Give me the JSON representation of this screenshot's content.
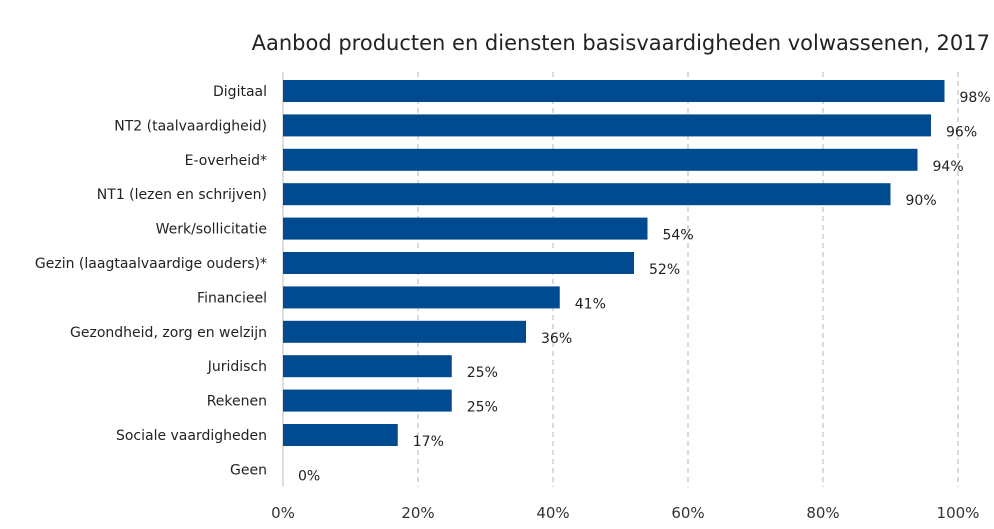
{
  "chart_data": {
    "type": "bar",
    "orientation": "horizontal",
    "title": "Aanbod producten en diensten basisvaardigheden volwassenen, 2017",
    "categories": [
      "Digitaal",
      "NT2 (taalvaardigheid)",
      "E-overheid*",
      "NT1 (lezen en schrijven)",
      "Werk/sollicitatie",
      "Gezin (laagtaalvaardige ouders)*",
      "Financieel",
      "Gezondheid, zorg en welzijn",
      "Juridisch",
      "Rekenen",
      "Sociale vaardigheden",
      "Geen"
    ],
    "values": [
      98,
      96,
      94,
      90,
      54,
      52,
      41,
      36,
      25,
      25,
      17,
      0
    ],
    "value_labels": [
      "98%",
      "96%",
      "94%",
      "90%",
      "54%",
      "52%",
      "41%",
      "36%",
      "25%",
      "25%",
      "17%",
      "0%"
    ],
    "xlim": [
      0,
      100
    ],
    "x_ticks": [
      0,
      20,
      40,
      60,
      80,
      100
    ],
    "x_tick_labels": [
      "0%",
      "20%",
      "40%",
      "60%",
      "80%",
      "100%"
    ],
    "grid": "vertical dashed",
    "colors": {
      "bar": "#004a8f",
      "grid": "#b5b5b5",
      "axis": "#bdbdbd",
      "text": "#222222"
    }
  }
}
